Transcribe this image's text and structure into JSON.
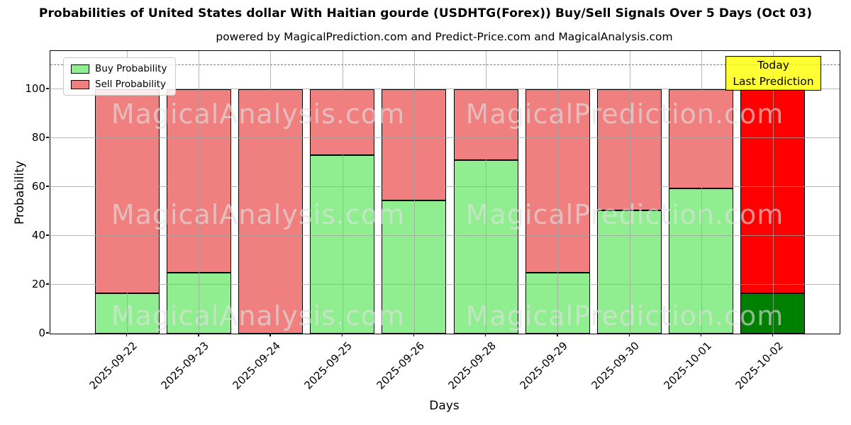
{
  "figure": {
    "title": "Probabilities of United States dollar With Haitian gourde (USDHTG(Forex)) Buy/Sell Signals Over 5 Days (Oct 03)",
    "subtitle": "powered by MagicalPrediction.com and Predict-Price.com and MagicalAnalysis.com"
  },
  "axes": {
    "xlabel": "Days",
    "ylabel": "Probability"
  },
  "legend": {
    "items": [
      {
        "label": "Buy Probability",
        "color": "#90EE90"
      },
      {
        "label": "Sell Probability",
        "color": "#F08080"
      }
    ]
  },
  "annotation": {
    "lines": [
      "Today",
      "Last Prediction"
    ],
    "bg_color": "#FFFF00"
  },
  "watermark": {
    "left_text": "MagicalAnalysis.com",
    "right_text": "MagicalPrediction.com"
  },
  "chart_data": {
    "type": "bar",
    "stacked": true,
    "title": "Probabilities of United States dollar With Haitian gourde (USDHTG(Forex)) Buy/Sell Signals Over 5 Days (Oct 03)",
    "xlabel": "Days",
    "ylabel": "Probability",
    "categories": [
      "2025-09-22",
      "2025-09-23",
      "2025-09-24",
      "2025-09-25",
      "2025-09-26",
      "2025-09-28",
      "2025-09-29",
      "2025-09-30",
      "2025-10-01",
      "2025-10-02"
    ],
    "series": [
      {
        "name": "Buy Probability",
        "color": "#90EE90",
        "today_color": "#008000",
        "values": [
          16.5,
          25,
          0,
          73,
          54.5,
          71,
          25,
          50.5,
          59.5,
          16.5
        ]
      },
      {
        "name": "Sell Probability",
        "color": "#F08080",
        "today_color": "#FF0000",
        "values": [
          83.5,
          75,
          100,
          27,
          45.5,
          29,
          75,
          49.5,
          40.5,
          83.5
        ]
      }
    ],
    "today_index": 9,
    "yticks": [
      0,
      20,
      40,
      60,
      80,
      100
    ],
    "ylim": [
      0,
      115.7
    ],
    "dashed_line_y": 110,
    "grid": true,
    "legend_position": "upper left"
  }
}
